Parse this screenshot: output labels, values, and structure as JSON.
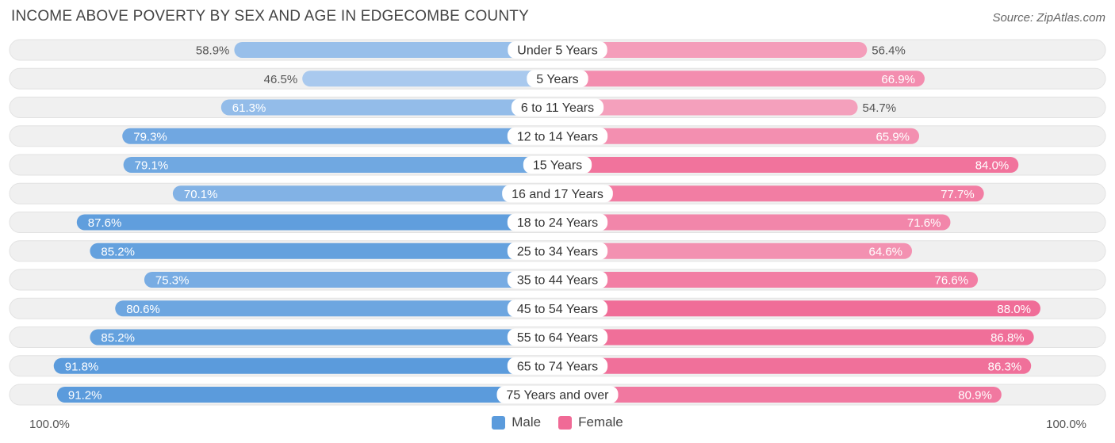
{
  "header": {
    "title": "INCOME ABOVE POVERTY BY SEX AND AGE IN EDGECOMBE COUNTY",
    "source": "Source: ZipAtlas.com"
  },
  "axis": {
    "left_label": "100.0%",
    "right_label": "100.0%"
  },
  "legend": {
    "male_label": "Male",
    "female_label": "Female"
  },
  "colors": {
    "male": "#5b9bdc",
    "male_light": "#a9c9ee",
    "female": "#f06a96",
    "female_light": "#f5a7c1",
    "track": "#f0f0f0"
  },
  "chart_data": {
    "type": "bar",
    "orientation": "horizontal-diverging",
    "title": "INCOME ABOVE POVERTY BY SEX AND AGE IN EDGECOMBE COUNTY",
    "xlim": [
      0,
      100
    ],
    "categories": [
      "Under 5 Years",
      "5 Years",
      "6 to 11 Years",
      "12 to 14 Years",
      "15 Years",
      "16 and 17 Years",
      "18 to 24 Years",
      "25 to 34 Years",
      "35 to 44 Years",
      "45 to 54 Years",
      "55 to 64 Years",
      "65 to 74 Years",
      "75 Years and over"
    ],
    "series": [
      {
        "name": "Male",
        "values": [
          58.9,
          46.5,
          61.3,
          79.3,
          79.1,
          70.1,
          87.6,
          85.2,
          75.3,
          80.6,
          85.2,
          91.8,
          91.2
        ]
      },
      {
        "name": "Female",
        "values": [
          56.4,
          66.9,
          54.7,
          65.9,
          84.0,
          77.7,
          71.6,
          64.6,
          76.6,
          88.0,
          86.8,
          86.3,
          80.9
        ]
      }
    ],
    "value_labels": {
      "male": [
        "58.9%",
        "46.5%",
        "61.3%",
        "79.3%",
        "79.1%",
        "70.1%",
        "87.6%",
        "85.2%",
        "75.3%",
        "80.6%",
        "85.2%",
        "91.8%",
        "91.2%"
      ],
      "female": [
        "56.4%",
        "66.9%",
        "54.7%",
        "65.9%",
        "84.0%",
        "77.7%",
        "71.6%",
        "64.6%",
        "76.6%",
        "88.0%",
        "86.8%",
        "86.3%",
        "80.9%"
      ]
    },
    "legend_position": "bottom-center"
  }
}
